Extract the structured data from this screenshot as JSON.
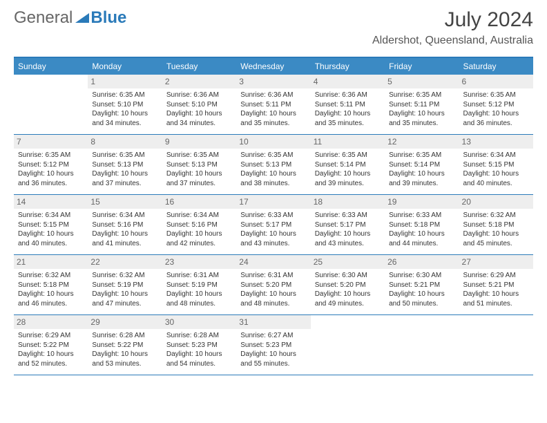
{
  "logo": {
    "text1": "General",
    "text2": "Blue"
  },
  "title": "July 2024",
  "location": "Aldershot, Queensland, Australia",
  "colors": {
    "header_bg": "#3b8ac4",
    "header_text": "#ffffff",
    "border": "#2a7ab9",
    "daynum_bg": "#eeeeee",
    "daynum_text": "#666666",
    "body_text": "#333333",
    "title_text": "#444444"
  },
  "days_of_week": [
    "Sunday",
    "Monday",
    "Tuesday",
    "Wednesday",
    "Thursday",
    "Friday",
    "Saturday"
  ],
  "weeks": [
    [
      {
        "n": "",
        "sunrise": "",
        "sunset": "",
        "daylight": ""
      },
      {
        "n": "1",
        "sunrise": "Sunrise: 6:35 AM",
        "sunset": "Sunset: 5:10 PM",
        "daylight": "Daylight: 10 hours and 34 minutes."
      },
      {
        "n": "2",
        "sunrise": "Sunrise: 6:36 AM",
        "sunset": "Sunset: 5:10 PM",
        "daylight": "Daylight: 10 hours and 34 minutes."
      },
      {
        "n": "3",
        "sunrise": "Sunrise: 6:36 AM",
        "sunset": "Sunset: 5:11 PM",
        "daylight": "Daylight: 10 hours and 35 minutes."
      },
      {
        "n": "4",
        "sunrise": "Sunrise: 6:36 AM",
        "sunset": "Sunset: 5:11 PM",
        "daylight": "Daylight: 10 hours and 35 minutes."
      },
      {
        "n": "5",
        "sunrise": "Sunrise: 6:35 AM",
        "sunset": "Sunset: 5:11 PM",
        "daylight": "Daylight: 10 hours and 35 minutes."
      },
      {
        "n": "6",
        "sunrise": "Sunrise: 6:35 AM",
        "sunset": "Sunset: 5:12 PM",
        "daylight": "Daylight: 10 hours and 36 minutes."
      }
    ],
    [
      {
        "n": "7",
        "sunrise": "Sunrise: 6:35 AM",
        "sunset": "Sunset: 5:12 PM",
        "daylight": "Daylight: 10 hours and 36 minutes."
      },
      {
        "n": "8",
        "sunrise": "Sunrise: 6:35 AM",
        "sunset": "Sunset: 5:13 PM",
        "daylight": "Daylight: 10 hours and 37 minutes."
      },
      {
        "n": "9",
        "sunrise": "Sunrise: 6:35 AM",
        "sunset": "Sunset: 5:13 PM",
        "daylight": "Daylight: 10 hours and 37 minutes."
      },
      {
        "n": "10",
        "sunrise": "Sunrise: 6:35 AM",
        "sunset": "Sunset: 5:13 PM",
        "daylight": "Daylight: 10 hours and 38 minutes."
      },
      {
        "n": "11",
        "sunrise": "Sunrise: 6:35 AM",
        "sunset": "Sunset: 5:14 PM",
        "daylight": "Daylight: 10 hours and 39 minutes."
      },
      {
        "n": "12",
        "sunrise": "Sunrise: 6:35 AM",
        "sunset": "Sunset: 5:14 PM",
        "daylight": "Daylight: 10 hours and 39 minutes."
      },
      {
        "n": "13",
        "sunrise": "Sunrise: 6:34 AM",
        "sunset": "Sunset: 5:15 PM",
        "daylight": "Daylight: 10 hours and 40 minutes."
      }
    ],
    [
      {
        "n": "14",
        "sunrise": "Sunrise: 6:34 AM",
        "sunset": "Sunset: 5:15 PM",
        "daylight": "Daylight: 10 hours and 40 minutes."
      },
      {
        "n": "15",
        "sunrise": "Sunrise: 6:34 AM",
        "sunset": "Sunset: 5:16 PM",
        "daylight": "Daylight: 10 hours and 41 minutes."
      },
      {
        "n": "16",
        "sunrise": "Sunrise: 6:34 AM",
        "sunset": "Sunset: 5:16 PM",
        "daylight": "Daylight: 10 hours and 42 minutes."
      },
      {
        "n": "17",
        "sunrise": "Sunrise: 6:33 AM",
        "sunset": "Sunset: 5:17 PM",
        "daylight": "Daylight: 10 hours and 43 minutes."
      },
      {
        "n": "18",
        "sunrise": "Sunrise: 6:33 AM",
        "sunset": "Sunset: 5:17 PM",
        "daylight": "Daylight: 10 hours and 43 minutes."
      },
      {
        "n": "19",
        "sunrise": "Sunrise: 6:33 AM",
        "sunset": "Sunset: 5:18 PM",
        "daylight": "Daylight: 10 hours and 44 minutes."
      },
      {
        "n": "20",
        "sunrise": "Sunrise: 6:32 AM",
        "sunset": "Sunset: 5:18 PM",
        "daylight": "Daylight: 10 hours and 45 minutes."
      }
    ],
    [
      {
        "n": "21",
        "sunrise": "Sunrise: 6:32 AM",
        "sunset": "Sunset: 5:18 PM",
        "daylight": "Daylight: 10 hours and 46 minutes."
      },
      {
        "n": "22",
        "sunrise": "Sunrise: 6:32 AM",
        "sunset": "Sunset: 5:19 PM",
        "daylight": "Daylight: 10 hours and 47 minutes."
      },
      {
        "n": "23",
        "sunrise": "Sunrise: 6:31 AM",
        "sunset": "Sunset: 5:19 PM",
        "daylight": "Daylight: 10 hours and 48 minutes."
      },
      {
        "n": "24",
        "sunrise": "Sunrise: 6:31 AM",
        "sunset": "Sunset: 5:20 PM",
        "daylight": "Daylight: 10 hours and 48 minutes."
      },
      {
        "n": "25",
        "sunrise": "Sunrise: 6:30 AM",
        "sunset": "Sunset: 5:20 PM",
        "daylight": "Daylight: 10 hours and 49 minutes."
      },
      {
        "n": "26",
        "sunrise": "Sunrise: 6:30 AM",
        "sunset": "Sunset: 5:21 PM",
        "daylight": "Daylight: 10 hours and 50 minutes."
      },
      {
        "n": "27",
        "sunrise": "Sunrise: 6:29 AM",
        "sunset": "Sunset: 5:21 PM",
        "daylight": "Daylight: 10 hours and 51 minutes."
      }
    ],
    [
      {
        "n": "28",
        "sunrise": "Sunrise: 6:29 AM",
        "sunset": "Sunset: 5:22 PM",
        "daylight": "Daylight: 10 hours and 52 minutes."
      },
      {
        "n": "29",
        "sunrise": "Sunrise: 6:28 AM",
        "sunset": "Sunset: 5:22 PM",
        "daylight": "Daylight: 10 hours and 53 minutes."
      },
      {
        "n": "30",
        "sunrise": "Sunrise: 6:28 AM",
        "sunset": "Sunset: 5:23 PM",
        "daylight": "Daylight: 10 hours and 54 minutes."
      },
      {
        "n": "31",
        "sunrise": "Sunrise: 6:27 AM",
        "sunset": "Sunset: 5:23 PM",
        "daylight": "Daylight: 10 hours and 55 minutes."
      },
      {
        "n": "",
        "sunrise": "",
        "sunset": "",
        "daylight": ""
      },
      {
        "n": "",
        "sunrise": "",
        "sunset": "",
        "daylight": ""
      },
      {
        "n": "",
        "sunrise": "",
        "sunset": "",
        "daylight": ""
      }
    ]
  ]
}
